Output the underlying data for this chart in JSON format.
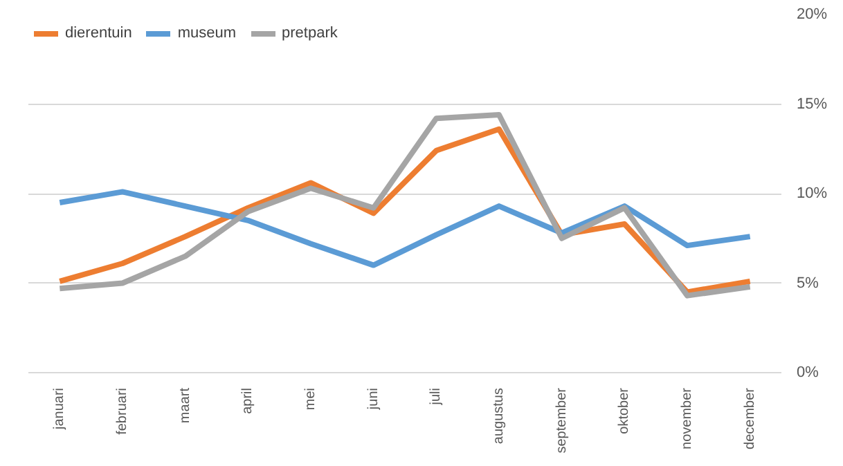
{
  "chart_data": {
    "type": "line",
    "categories": [
      "januari",
      "februari",
      "maart",
      "april",
      "mei",
      "juni",
      "juli",
      "augustus",
      "september",
      "oktober",
      "november",
      "december"
    ],
    "series": [
      {
        "name": "dierentuin",
        "color": "#ed7d31",
        "values": [
          5.1,
          6.1,
          7.6,
          9.2,
          10.6,
          8.9,
          12.4,
          13.6,
          7.7,
          8.3,
          4.5,
          5.1
        ]
      },
      {
        "name": "museum",
        "color": "#5b9bd5",
        "values": [
          9.5,
          10.1,
          9.3,
          8.5,
          7.2,
          6.0,
          7.7,
          9.3,
          7.8,
          9.3,
          7.1,
          7.6
        ]
      },
      {
        "name": "pretpark",
        "color": "#a5a5a5",
        "values": [
          4.7,
          5.0,
          6.5,
          9.0,
          10.3,
          9.2,
          14.2,
          14.4,
          7.5,
          9.2,
          4.3,
          4.8
        ]
      }
    ],
    "ylim": [
      0,
      20
    ],
    "yticks": [
      {
        "value": 0,
        "label": "0%"
      },
      {
        "value": 5,
        "label": "5%"
      },
      {
        "value": 10,
        "label": "10%"
      },
      {
        "value": 15,
        "label": "15%"
      },
      {
        "value": 20,
        "label": "20%"
      }
    ],
    "grid": "y",
    "legend": "top left",
    "marker": "none",
    "line_style": "solid"
  }
}
